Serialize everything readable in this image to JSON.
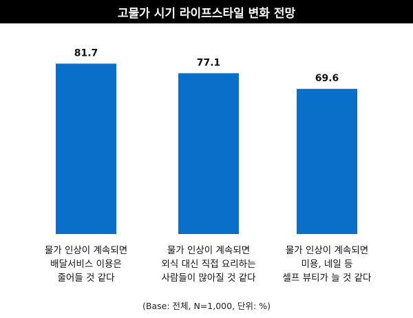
{
  "chart_data": {
    "type": "bar",
    "title": "고물가 시기 라이프스타일 변화 전망",
    "categories": [
      [
        "물가 인상이 계속되면",
        "배달서비스 이용은",
        "줄어들 것 같다"
      ],
      [
        "물가 인상이 계속되면",
        "외식 대신 직접 요리하는",
        "사람들이 많아질 것 같다"
      ],
      [
        "물가 인상이 계속되면",
        "미용, 네일 등",
        "셀프 뷰티가 늘 것 같다"
      ]
    ],
    "values": [
      81.7,
      77.1,
      69.6
    ],
    "value_labels": [
      "81.7",
      "77.1",
      "69.6"
    ],
    "ylim": [
      0,
      100
    ],
    "grid": false,
    "bar_color": "#0A6FC8",
    "footnote": "(Base: 전체, N=1,000, 단위: %)"
  }
}
